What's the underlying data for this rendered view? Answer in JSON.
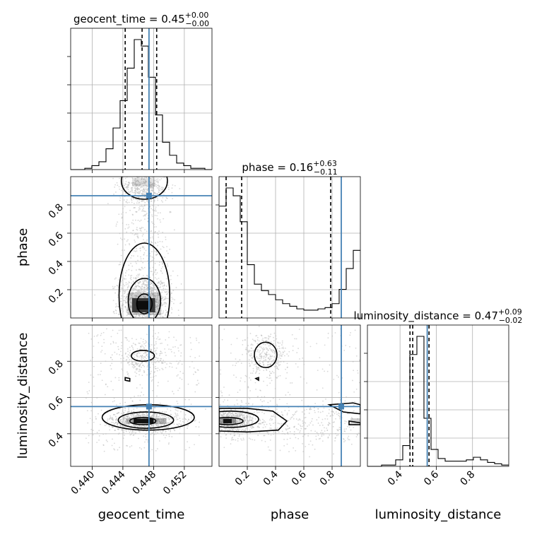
{
  "chart_data": {
    "type": "corner",
    "parameters": [
      "geocent_time",
      "phase",
      "luminosity_distance"
    ],
    "truth": {
      "geocent_time": 0.4474,
      "phase": 0.865,
      "luminosity_distance": 0.55
    },
    "diag_titles": [
      {
        "param": "geocent_time",
        "main": "geocent_time = 0.45",
        "sup": "+0.00",
        "sub": "−0.00"
      },
      {
        "param": "phase",
        "main": "phase = 0.16",
        "sup": "+0.63",
        "sub": "−0.11"
      },
      {
        "param": "luminosity_distance",
        "main": "luminosity_distance = 0.47",
        "sup": "+0.09",
        "sub": "−0.02"
      }
    ],
    "quantiles": {
      "geocent_time": [
        0.4443,
        0.4465,
        0.4484
      ],
      "phase": [
        0.05,
        0.16,
        0.79
      ],
      "luminosity_distance": [
        0.455,
        0.47,
        0.56
      ]
    },
    "ranges": {
      "geocent_time": [
        0.4372,
        0.4556
      ],
      "phase": [
        0.0,
        1.0
      ],
      "luminosity_distance": [
        0.22,
        1.0
      ]
    },
    "axis_labels": {
      "x": [
        "geocent_time",
        "phase",
        "luminosity_distance"
      ],
      "y": [
        "phase",
        "luminosity_distance"
      ]
    },
    "ticks": {
      "geocent_time": [
        {
          "v": 0.44,
          "t": "0.440"
        },
        {
          "v": 0.444,
          "t": "0.444"
        },
        {
          "v": 0.448,
          "t": "0.448"
        },
        {
          "v": 0.452,
          "t": "0.452"
        }
      ],
      "phase": [
        {
          "v": 0.2,
          "t": "0.2"
        },
        {
          "v": 0.4,
          "t": "0.4"
        },
        {
          "v": 0.6,
          "t": "0.6"
        },
        {
          "v": 0.8,
          "t": "0.8"
        }
      ],
      "luminosity_distance": [
        {
          "v": 0.4,
          "t": "0.4"
        },
        {
          "v": 0.6,
          "t": "0.6"
        },
        {
          "v": 0.8,
          "t": "0.8"
        }
      ]
    },
    "histograms": {
      "geocent_time": {
        "edges_range": [
          0.4372,
          0.4556
        ],
        "counts": [
          0,
          0,
          1,
          3,
          6,
          16,
          32,
          53,
          78,
          100,
          95,
          71,
          42,
          21,
          11,
          5,
          3,
          1,
          1,
          0
        ]
      },
      "phase": {
        "edges_range": [
          0.0,
          1.0
        ],
        "counts": [
          86,
          100,
          94,
          74,
          41,
          26,
          21,
          18,
          14,
          11,
          9,
          7,
          6,
          6,
          7,
          8,
          11,
          22,
          38,
          52
        ]
      },
      "luminosity_distance": {
        "edges_range": [
          0.22,
          1.0
        ],
        "counts": [
          0,
          0,
          1,
          1,
          5,
          16,
          86,
          100,
          37,
          13,
          6,
          4,
          4,
          4,
          5,
          7,
          5,
          3,
          2,
          1
        ]
      }
    },
    "grid": true
  }
}
